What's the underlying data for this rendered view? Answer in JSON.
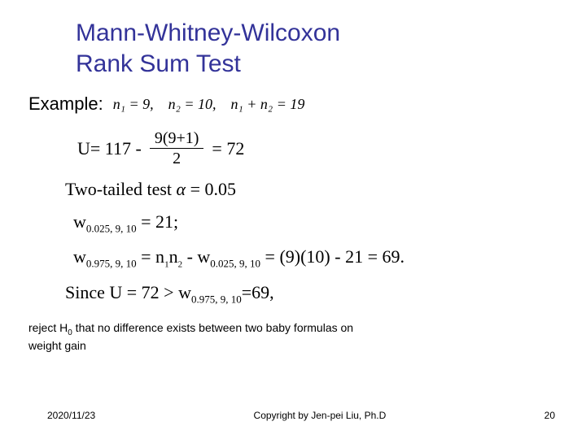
{
  "title_line1": "Mann-Whitney-Wilcoxon",
  "title_line2": "Rank Sum Test",
  "example_label": "Example:",
  "example_math": "n₁ = 9, n₂ = 10, n₁ + n₂ = 19",
  "u_eq_left": "U=  117  -",
  "u_frac_num": "9(9+1)",
  "u_frac_den": "2",
  "u_eq_right": "= 72",
  "two_tailed_prefix": "Two-tailed test ",
  "alpha_sym": "α",
  "two_tailed_val": " = 0.05",
  "w1_prefix": "w",
  "w1_sub": "0.025, 9, 10",
  "w1_rest": " = 21;",
  "w2_prefix": "w",
  "w2_sub1": "0.975, 9, 10",
  "w2_mid": " = n",
  "w2_n1sub": "1",
  "w2_mid2": "n",
  "w2_n2sub": "2",
  "w2_minus": " -  w",
  "w2_sub2": "0.025, 9, 10",
  "w2_rest": " = (9)(10) - 21 = 69.",
  "since_prefix": "Since U = 72 > w",
  "since_sub": "0.975, 9, 10",
  "since_rest": "=69,",
  "conclusion_1": "reject H",
  "conclusion_sub": "0",
  "conclusion_2": " that no difference exists between two baby formulas on",
  "conclusion_3": "weight gain",
  "footer_date": "2020/11/23",
  "footer_copyright": "Copyright by Jen-pei Liu, Ph.D",
  "footer_page": "20",
  "colors": {
    "title": "#333399",
    "text": "#000000",
    "background": "#ffffff"
  }
}
